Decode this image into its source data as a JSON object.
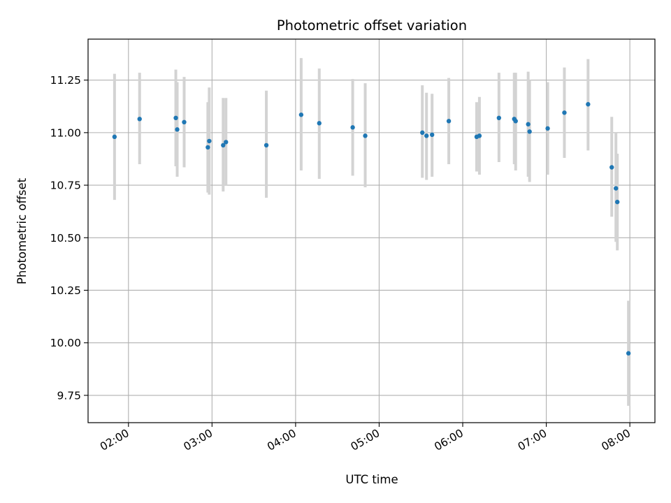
{
  "chart_data": {
    "type": "scatter",
    "title": "Photometric offset variation",
    "xlabel": "UTC time",
    "ylabel": "Photometric offset",
    "xlim": [
      "01:31",
      "08:18"
    ],
    "ylim": [
      9.62,
      11.445
    ],
    "grid": true,
    "colors": {
      "point": "#1f77b4",
      "errorbar": "#d3d3d3",
      "grid": "#b0b0b0",
      "axes": "#000000"
    },
    "x_ticks": [
      "02:00",
      "03:00",
      "04:00",
      "05:00",
      "06:00",
      "07:00",
      "08:00"
    ],
    "y_ticks": [
      "9.75",
      "10.00",
      "10.25",
      "10.50",
      "10.75",
      "11.00",
      "11.25"
    ],
    "points": [
      {
        "x": "01:50",
        "y": 10.98,
        "low": 10.68,
        "high": 11.28
      },
      {
        "x": "02:08",
        "y": 11.065,
        "low": 10.85,
        "high": 11.285
      },
      {
        "x": "02:34",
        "y": 11.07,
        "low": 10.84,
        "high": 11.3
      },
      {
        "x": "02:35",
        "y": 11.015,
        "low": 10.79,
        "high": 11.24
      },
      {
        "x": "02:40",
        "y": 11.05,
        "low": 10.835,
        "high": 11.265
      },
      {
        "x": "02:57",
        "y": 10.93,
        "low": 10.715,
        "high": 11.145
      },
      {
        "x": "02:58",
        "y": 10.96,
        "low": 10.705,
        "high": 11.215
      },
      {
        "x": "03:08",
        "y": 10.94,
        "low": 10.72,
        "high": 11.165
      },
      {
        "x": "03:10",
        "y": 10.955,
        "low": 10.75,
        "high": 11.165
      },
      {
        "x": "03:39",
        "y": 10.94,
        "low": 10.69,
        "high": 11.2
      },
      {
        "x": "04:04",
        "y": 11.085,
        "low": 10.82,
        "high": 11.355
      },
      {
        "x": "04:17",
        "y": 11.045,
        "low": 10.78,
        "high": 11.305
      },
      {
        "x": "04:41",
        "y": 11.025,
        "low": 10.795,
        "high": 11.255
      },
      {
        "x": "04:50",
        "y": 10.985,
        "low": 10.74,
        "high": 11.235
      },
      {
        "x": "05:31",
        "y": 11.0,
        "low": 10.785,
        "high": 11.225
      },
      {
        "x": "05:34",
        "y": 10.985,
        "low": 10.775,
        "high": 11.19
      },
      {
        "x": "05:38",
        "y": 10.99,
        "low": 10.79,
        "high": 11.185
      },
      {
        "x": "05:50",
        "y": 11.055,
        "low": 10.85,
        "high": 11.26
      },
      {
        "x": "06:10",
        "y": 10.98,
        "low": 10.815,
        "high": 11.145
      },
      {
        "x": "06:12",
        "y": 10.985,
        "low": 10.8,
        "high": 11.17
      },
      {
        "x": "06:26",
        "y": 11.07,
        "low": 10.86,
        "high": 11.285
      },
      {
        "x": "06:37",
        "y": 11.065,
        "low": 10.85,
        "high": 11.285
      },
      {
        "x": "06:38",
        "y": 11.055,
        "low": 10.82,
        "high": 11.285
      },
      {
        "x": "06:47",
        "y": 11.04,
        "low": 10.79,
        "high": 11.29
      },
      {
        "x": "06:48",
        "y": 11.005,
        "low": 10.765,
        "high": 11.25
      },
      {
        "x": "07:01",
        "y": 11.02,
        "low": 10.8,
        "high": 11.24
      },
      {
        "x": "07:13",
        "y": 11.095,
        "low": 10.88,
        "high": 11.31
      },
      {
        "x": "07:30",
        "y": 11.135,
        "low": 10.915,
        "high": 11.35
      },
      {
        "x": "07:47",
        "y": 10.835,
        "low": 10.6,
        "high": 11.075
      },
      {
        "x": "07:50",
        "y": 10.735,
        "low": 10.48,
        "high": 11.0
      },
      {
        "x": "07:51",
        "y": 10.67,
        "low": 10.44,
        "high": 10.9
      },
      {
        "x": "07:59",
        "y": 9.95,
        "low": 9.7,
        "high": 10.2
      }
    ]
  }
}
